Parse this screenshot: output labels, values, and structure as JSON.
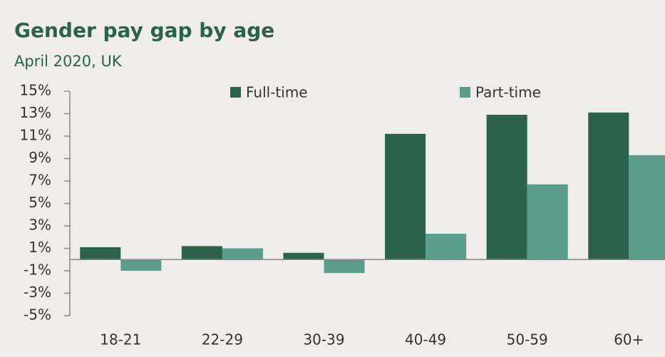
{
  "chart_data": {
    "type": "bar",
    "title": "Gender pay gap by age",
    "subtitle": "April 2020, UK",
    "categories": [
      "18-21",
      "22-29",
      "30-39",
      "40-49",
      "50-59",
      "60+"
    ],
    "series": [
      {
        "name": "Full-time",
        "color": "#2a6349",
        "values": [
          1.1,
          1.2,
          0.6,
          11.2,
          12.9,
          13.1
        ]
      },
      {
        "name": "Part-time",
        "color": "#5a9d8a",
        "values": [
          -1.0,
          1.0,
          -1.2,
          2.3,
          6.7,
          9.3
        ]
      }
    ],
    "ylim": [
      -5,
      15
    ],
    "yticks": [
      {
        "value": -5,
        "label": "-5%"
      },
      {
        "value": -3,
        "label": "-3%"
      },
      {
        "value": -1,
        "label": "-1%"
      },
      {
        "value": 1,
        "label": "1%"
      },
      {
        "value": 3,
        "label": "3%"
      },
      {
        "value": 5,
        "label": "5%"
      },
      {
        "value": 7,
        "label": "7%"
      },
      {
        "value": 9,
        "label": "9%"
      },
      {
        "value": 11,
        "label": "11%"
      },
      {
        "value": 13,
        "label": "13%"
      },
      {
        "value": 15,
        "label": "15%"
      }
    ],
    "legend": "top",
    "grid": false
  }
}
